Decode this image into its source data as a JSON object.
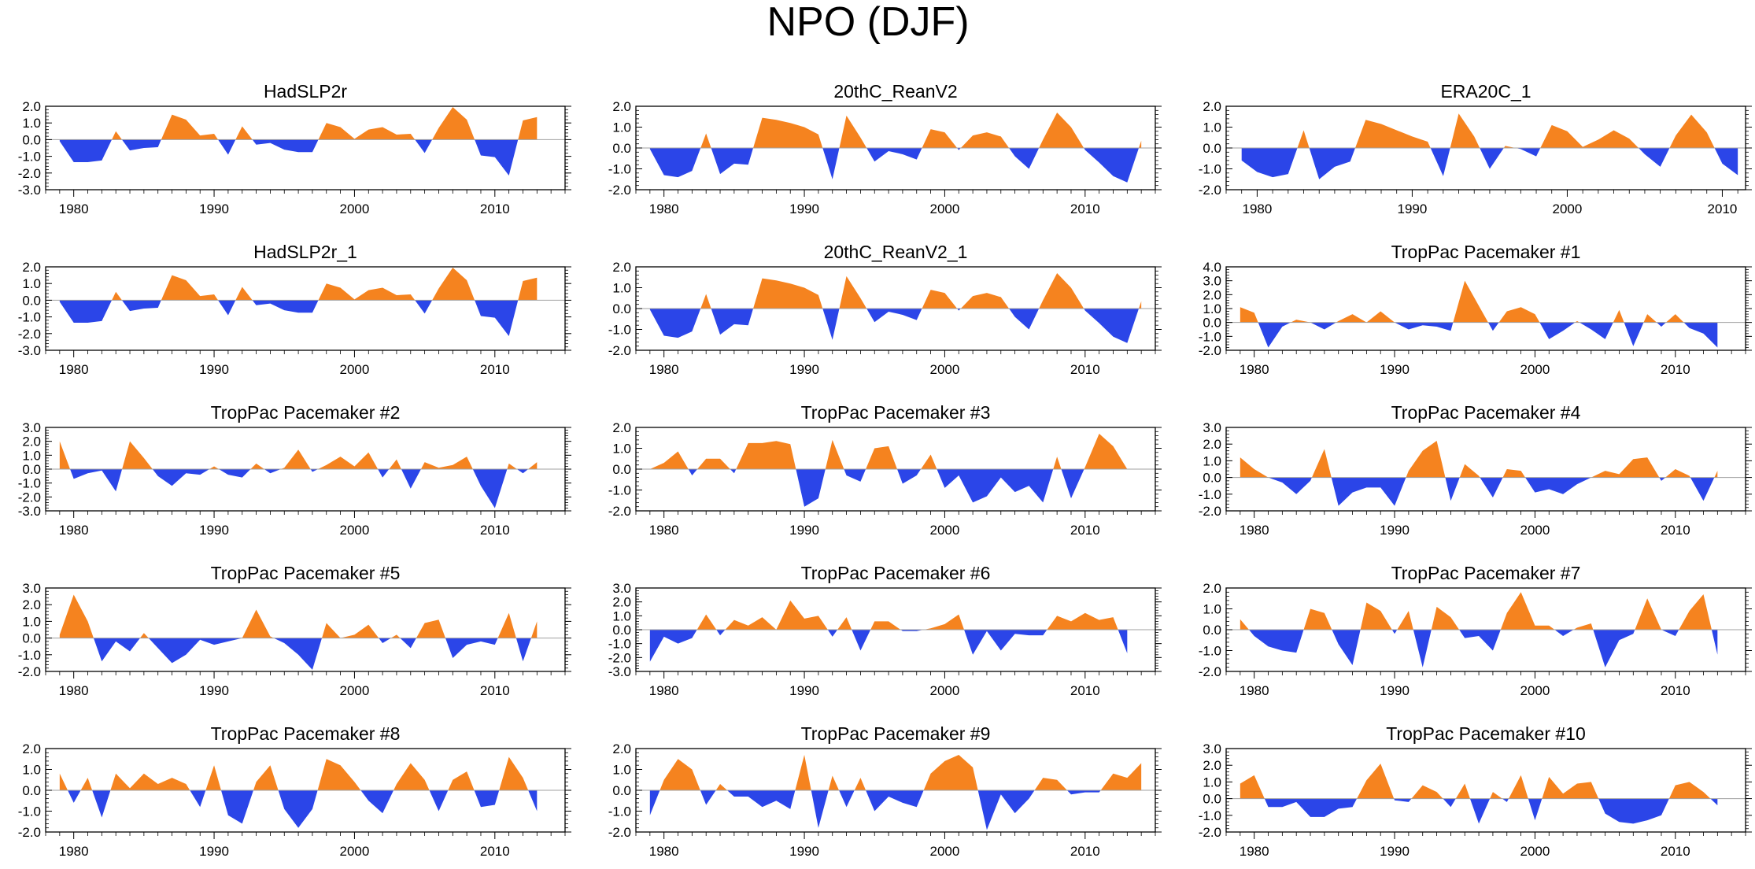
{
  "figure": {
    "title": "NPO (DJF)",
    "colors": {
      "positive": "#F5831F",
      "negative": "#2B45E8",
      "axis": "#000000",
      "zero_line": "#A0A0A0"
    }
  },
  "chart_data": [
    {
      "type": "area",
      "title": "HadSLP2r",
      "x_start": 1979,
      "xlim": [
        1978,
        2015
      ],
      "xticks": [
        1980,
        1990,
        2000,
        2010
      ],
      "ylim": [
        -3,
        2
      ],
      "yticks": [
        -3,
        -2,
        -1,
        0,
        1,
        2
      ],
      "ytick_labels": [
        "-3.0",
        "-2.0",
        "-1.0",
        "0.0",
        "1.0",
        "2.0"
      ],
      "values": [
        -0.1,
        -1.35,
        -1.35,
        -1.25,
        0.5,
        -0.65,
        -0.5,
        -0.45,
        1.5,
        1.2,
        0.25,
        0.35,
        -0.9,
        0.8,
        -0.3,
        -0.2,
        -0.6,
        -0.75,
        -0.75,
        1.0,
        0.75,
        0.05,
        0.6,
        0.75,
        0.3,
        0.35,
        -0.8,
        0.7,
        1.95,
        1.2,
        -0.95,
        -1.05,
        -2.15,
        1.15,
        1.35
      ]
    },
    {
      "type": "area",
      "title": "20thC_ReanV2",
      "x_start": 1979,
      "xlim": [
        1978,
        2015
      ],
      "xticks": [
        1980,
        1990,
        2000,
        2010
      ],
      "ylim": [
        -2,
        2
      ],
      "yticks": [
        -2,
        -1,
        0,
        1,
        2
      ],
      "ytick_labels": [
        "-2.0",
        "-1.0",
        "0.0",
        "1.0",
        "2.0"
      ],
      "values": [
        -0.05,
        -1.3,
        -1.4,
        -1.1,
        0.7,
        -1.25,
        -0.75,
        -0.8,
        1.45,
        1.35,
        1.2,
        1.0,
        0.65,
        -1.5,
        1.55,
        0.5,
        -0.65,
        -0.15,
        -0.3,
        -0.55,
        0.9,
        0.75,
        -0.1,
        0.6,
        0.75,
        0.55,
        -0.4,
        -1.0,
        0.4,
        1.7,
        1.0,
        -0.1,
        -0.7,
        -1.35,
        -1.65,
        0.35
      ]
    },
    {
      "type": "area",
      "title": "ERA20C_1",
      "x_start": 1979,
      "xlim": [
        1978,
        2011.5
      ],
      "xticks": [
        1980,
        1990,
        2000,
        2010
      ],
      "ylim": [
        -2,
        2
      ],
      "yticks": [
        -2,
        -1,
        0,
        1,
        2
      ],
      "ytick_labels": [
        "-2.0",
        "-1.0",
        "0.0",
        "1.0",
        "2.0"
      ],
      "values": [
        -0.6,
        -1.15,
        -1.4,
        -1.25,
        0.85,
        -1.5,
        -0.9,
        -0.65,
        1.35,
        1.15,
        0.85,
        0.55,
        0.3,
        -1.35,
        1.65,
        0.55,
        -1.0,
        0.1,
        -0.05,
        -0.4,
        1.1,
        0.8,
        0.05,
        0.4,
        0.85,
        0.45,
        -0.3,
        -0.9,
        0.6,
        1.6,
        0.75,
        -0.75,
        -1.3
      ]
    },
    {
      "type": "area",
      "title": "HadSLP2r_1",
      "x_start": 1979,
      "xlim": [
        1978,
        2015
      ],
      "xticks": [
        1980,
        1990,
        2000,
        2010
      ],
      "ylim": [
        -3,
        2
      ],
      "yticks": [
        -3,
        -2,
        -1,
        0,
        1,
        2
      ],
      "ytick_labels": [
        "-3.0",
        "-2.0",
        "-1.0",
        "0.0",
        "1.0",
        "2.0"
      ],
      "values": [
        -0.1,
        -1.35,
        -1.35,
        -1.25,
        0.5,
        -0.65,
        -0.5,
        -0.45,
        1.5,
        1.2,
        0.25,
        0.35,
        -0.9,
        0.8,
        -0.3,
        -0.2,
        -0.6,
        -0.75,
        -0.75,
        1.0,
        0.75,
        0.05,
        0.6,
        0.75,
        0.3,
        0.35,
        -0.8,
        0.7,
        1.95,
        1.2,
        -0.95,
        -1.05,
        -2.15,
        1.15,
        1.35
      ]
    },
    {
      "type": "area",
      "title": "20thC_ReanV2_1",
      "x_start": 1979,
      "xlim": [
        1978,
        2015
      ],
      "xticks": [
        1980,
        1990,
        2000,
        2010
      ],
      "ylim": [
        -2,
        2
      ],
      "yticks": [
        -2,
        -1,
        0,
        1,
        2
      ],
      "ytick_labels": [
        "-2.0",
        "-1.0",
        "0.0",
        "1.0",
        "2.0"
      ],
      "values": [
        -0.05,
        -1.3,
        -1.4,
        -1.1,
        0.7,
        -1.25,
        -0.75,
        -0.8,
        1.45,
        1.35,
        1.2,
        1.0,
        0.65,
        -1.5,
        1.55,
        0.5,
        -0.65,
        -0.15,
        -0.3,
        -0.55,
        0.9,
        0.75,
        -0.1,
        0.6,
        0.75,
        0.55,
        -0.4,
        -1.0,
        0.4,
        1.7,
        1.0,
        -0.1,
        -0.7,
        -1.35,
        -1.65,
        0.35
      ]
    },
    {
      "type": "area",
      "title": "TropPac Pacemaker #1",
      "x_start": 1979,
      "xlim": [
        1978,
        2015
      ],
      "xticks": [
        1980,
        1990,
        2000,
        2010
      ],
      "ylim": [
        -2,
        4
      ],
      "yticks": [
        -2,
        -1,
        0,
        1,
        2,
        3,
        4
      ],
      "ytick_labels": [
        "-2.0",
        "-1.0",
        "0.0",
        "1.0",
        "2.0",
        "3.0",
        "4.0"
      ],
      "values": [
        1.1,
        0.7,
        -1.8,
        -0.3,
        0.2,
        0.0,
        -0.5,
        0.1,
        0.6,
        0.0,
        0.8,
        0.0,
        -0.5,
        -0.2,
        -0.3,
        -0.6,
        3.0,
        1.2,
        -0.6,
        0.8,
        1.1,
        0.6,
        -1.2,
        -0.6,
        0.1,
        -0.5,
        -1.2,
        0.9,
        -1.7,
        0.6,
        -0.3,
        0.6,
        -0.4,
        -0.8,
        -1.8
      ]
    },
    {
      "type": "area",
      "title": "TropPac Pacemaker #2",
      "x_start": 1979,
      "xlim": [
        1978,
        2015
      ],
      "xticks": [
        1980,
        1990,
        2000,
        2010
      ],
      "ylim": [
        -3,
        3
      ],
      "yticks": [
        -3,
        -2,
        -1,
        0,
        1,
        2,
        3
      ],
      "ytick_labels": [
        "-3.0",
        "-2.0",
        "-1.0",
        "0.0",
        "1.0",
        "2.0",
        "3.0"
      ],
      "values": [
        2.0,
        -0.7,
        -0.3,
        -0.1,
        -1.6,
        2.0,
        0.8,
        -0.5,
        -1.2,
        -0.3,
        -0.4,
        0.2,
        -0.4,
        -0.6,
        0.4,
        -0.3,
        0.1,
        1.4,
        -0.2,
        0.3,
        0.9,
        0.2,
        1.2,
        -0.6,
        0.7,
        -1.4,
        0.5,
        0.1,
        0.3,
        0.9,
        -1.2,
        -2.8,
        0.4,
        -0.3,
        0.5
      ]
    },
    {
      "type": "area",
      "title": "TropPac Pacemaker #3",
      "x_start": 1979,
      "xlim": [
        1978,
        2015
      ],
      "xticks": [
        1980,
        1990,
        2000,
        2010
      ],
      "ylim": [
        -2,
        2
      ],
      "yticks": [
        -2,
        -1,
        0,
        1,
        2
      ],
      "ytick_labels": [
        "-2.0",
        "-1.0",
        "0.0",
        "1.0",
        "2.0"
      ],
      "values": [
        0.0,
        0.3,
        0.85,
        -0.3,
        0.5,
        0.5,
        -0.2,
        1.25,
        1.25,
        1.35,
        1.2,
        -1.8,
        -1.4,
        1.4,
        -0.3,
        -0.6,
        1.0,
        1.1,
        -0.7,
        -0.3,
        0.7,
        -0.9,
        -0.3,
        -1.6,
        -1.3,
        -0.4,
        -1.1,
        -0.8,
        -1.6,
        0.6,
        -1.4,
        0.1,
        1.7,
        1.1,
        0.0
      ]
    },
    {
      "type": "area",
      "title": "TropPac Pacemaker #4",
      "x_start": 1979,
      "xlim": [
        1978,
        2015
      ],
      "xticks": [
        1980,
        1990,
        2000,
        2010
      ],
      "ylim": [
        -2,
        3
      ],
      "yticks": [
        -2,
        -1,
        0,
        1,
        2,
        3
      ],
      "ytick_labels": [
        "-2.0",
        "-1.0",
        "0.0",
        "1.0",
        "2.0",
        "3.0"
      ],
      "values": [
        1.2,
        0.5,
        0.0,
        -0.3,
        -1.0,
        -0.2,
        1.7,
        -1.7,
        -0.9,
        -0.6,
        -0.6,
        -1.7,
        0.4,
        1.6,
        2.2,
        -1.4,
        0.8,
        0.1,
        -1.2,
        0.5,
        0.4,
        -0.9,
        -0.7,
        -1.0,
        -0.4,
        0.0,
        0.4,
        0.2,
        1.1,
        1.2,
        -0.2,
        0.5,
        0.1,
        -1.4,
        0.4
      ]
    },
    {
      "type": "area",
      "title": "TropPac Pacemaker #5",
      "x_start": 1979,
      "xlim": [
        1978,
        2015
      ],
      "xticks": [
        1980,
        1990,
        2000,
        2010
      ],
      "ylim": [
        -2,
        3
      ],
      "yticks": [
        -2,
        -1,
        0,
        1,
        2,
        3
      ],
      "ytick_labels": [
        "-2.0",
        "-1.0",
        "0.0",
        "1.0",
        "2.0",
        "3.0"
      ],
      "values": [
        0.2,
        2.6,
        1.0,
        -1.4,
        -0.2,
        -0.8,
        0.3,
        -0.6,
        -1.5,
        -1.0,
        -0.1,
        -0.4,
        -0.2,
        0.0,
        1.7,
        0.1,
        -0.3,
        -1.0,
        -1.9,
        0.9,
        0.0,
        0.2,
        0.8,
        -0.3,
        0.2,
        -0.6,
        0.9,
        1.1,
        -1.2,
        -0.4,
        -0.2,
        -0.4,
        1.5,
        -1.4,
        1.0
      ]
    },
    {
      "type": "area",
      "title": "TropPac Pacemaker #6",
      "x_start": 1979,
      "xlim": [
        1978,
        2015
      ],
      "xticks": [
        1980,
        1990,
        2000,
        2010
      ],
      "ylim": [
        -3,
        3
      ],
      "yticks": [
        -3,
        -2,
        -1,
        0,
        1,
        2,
        3
      ],
      "ytick_labels": [
        "-3.0",
        "-2.0",
        "-1.0",
        "0.0",
        "1.0",
        "2.0",
        "3.0"
      ],
      "values": [
        -2.3,
        -0.5,
        -1.0,
        -0.6,
        1.1,
        -0.4,
        0.7,
        0.3,
        0.9,
        0.0,
        2.1,
        0.8,
        1.0,
        -0.5,
        0.9,
        -1.5,
        0.6,
        0.6,
        -0.1,
        -0.1,
        0.1,
        0.4,
        1.1,
        -1.8,
        -0.1,
        -1.5,
        -0.3,
        -0.4,
        -0.4,
        1.0,
        0.6,
        1.2,
        0.7,
        0.9,
        -1.7
      ]
    },
    {
      "type": "area",
      "title": "TropPac Pacemaker #7",
      "x_start": 1979,
      "xlim": [
        1978,
        2015
      ],
      "xticks": [
        1980,
        1990,
        2000,
        2010
      ],
      "ylim": [
        -2,
        2
      ],
      "yticks": [
        -2,
        -1,
        0,
        1,
        2
      ],
      "ytick_labels": [
        "-2.0",
        "-1.0",
        "0.0",
        "1.0",
        "2.0"
      ],
      "values": [
        0.5,
        -0.3,
        -0.8,
        -1.0,
        -1.1,
        1.0,
        0.8,
        -0.7,
        -1.7,
        1.3,
        0.9,
        -0.2,
        0.9,
        -1.8,
        1.1,
        0.6,
        -0.4,
        -0.3,
        -1.0,
        0.8,
        1.8,
        0.2,
        0.2,
        -0.3,
        0.1,
        0.3,
        -1.8,
        -0.5,
        -0.2,
        1.5,
        0.0,
        -0.3,
        0.9,
        1.7,
        -1.2
      ]
    },
    {
      "type": "area",
      "title": "TropPac Pacemaker #8",
      "x_start": 1979,
      "xlim": [
        1978,
        2015
      ],
      "xticks": [
        1980,
        1990,
        2000,
        2010
      ],
      "ylim": [
        -2,
        2
      ],
      "yticks": [
        -2,
        -1,
        0,
        1,
        2
      ],
      "ytick_labels": [
        "-2.0",
        "-1.0",
        "0.0",
        "1.0",
        "2.0"
      ],
      "values": [
        0.8,
        -0.6,
        0.6,
        -1.3,
        0.8,
        0.1,
        0.8,
        0.3,
        0.6,
        0.3,
        -0.8,
        1.2,
        -1.2,
        -1.6,
        0.4,
        1.2,
        -0.9,
        -1.8,
        -0.9,
        1.5,
        1.2,
        0.4,
        -0.5,
        -1.1,
        0.3,
        1.3,
        0.5,
        -1.0,
        0.5,
        0.9,
        -0.8,
        -0.7,
        1.6,
        0.6,
        -1.0
      ]
    },
    {
      "type": "area",
      "title": "TropPac Pacemaker #9",
      "x_start": 1979,
      "xlim": [
        1978,
        2015
      ],
      "xticks": [
        1980,
        1990,
        2000,
        2010
      ],
      "ylim": [
        -2,
        2
      ],
      "yticks": [
        -2,
        -1,
        0,
        1,
        2
      ],
      "ytick_labels": [
        "-2.0",
        "-1.0",
        "0.0",
        "1.0",
        "2.0"
      ],
      "values": [
        -1.2,
        0.5,
        1.5,
        1.0,
        -0.7,
        0.3,
        -0.3,
        -0.3,
        -0.8,
        -0.5,
        -0.9,
        1.7,
        -1.8,
        0.7,
        -0.8,
        0.6,
        -1.0,
        -0.3,
        -0.6,
        -0.8,
        0.8,
        1.4,
        1.7,
        1.1,
        -1.9,
        -0.2,
        -1.1,
        -0.4,
        0.6,
        0.5,
        -0.2,
        -0.1,
        -0.1,
        0.8,
        0.6,
        1.3
      ]
    },
    {
      "type": "area",
      "title": "TropPac Pacemaker #10",
      "x_start": 1979,
      "xlim": [
        1978,
        2015
      ],
      "xticks": [
        1980,
        1990,
        2000,
        2010
      ],
      "ylim": [
        -2,
        3
      ],
      "yticks": [
        -2,
        -1,
        0,
        1,
        2,
        3
      ],
      "ytick_labels": [
        "-2.0",
        "-1.0",
        "0.0",
        "1.0",
        "2.0",
        "3.0"
      ],
      "values": [
        0.9,
        1.4,
        -0.5,
        -0.5,
        -0.2,
        -1.1,
        -1.1,
        -0.6,
        -0.5,
        1.1,
        2.1,
        -0.1,
        -0.2,
        0.8,
        0.4,
        -0.5,
        0.9,
        -1.5,
        0.4,
        -0.2,
        1.4,
        -1.3,
        1.3,
        0.3,
        0.9,
        1.0,
        -0.9,
        -1.4,
        -1.5,
        -1.3,
        -1.0,
        0.8,
        1.0,
        0.4,
        -0.4
      ]
    }
  ]
}
